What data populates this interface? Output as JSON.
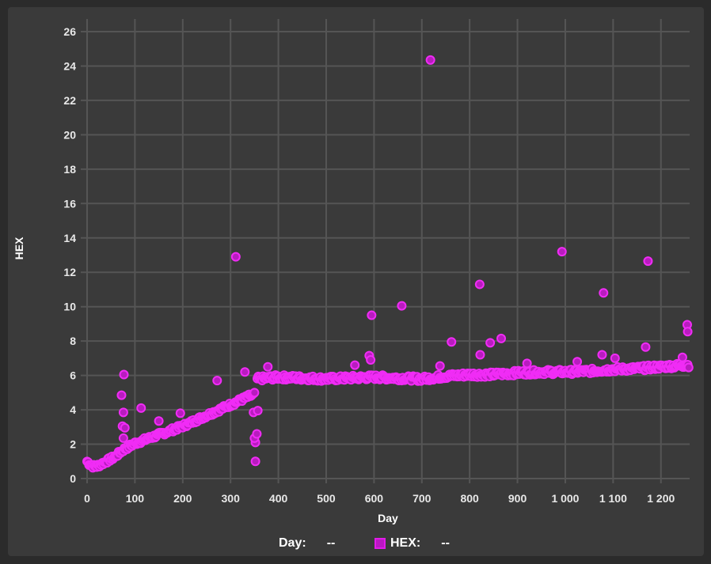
{
  "chart_data": {
    "type": "scatter",
    "xlabel": "Day",
    "ylabel": "HEX",
    "xlim": [
      0,
      1260
    ],
    "ylim": [
      0,
      26
    ],
    "x_ticks": [
      0,
      100,
      200,
      300,
      400,
      500,
      600,
      700,
      800,
      900,
      1000,
      1100,
      1200
    ],
    "x_tick_labels": [
      "0",
      "100",
      "200",
      "300",
      "400",
      "500",
      "600",
      "700",
      "800",
      "900",
      "1 000",
      "1 100",
      "1 200"
    ],
    "y_ticks": [
      0,
      2,
      4,
      6,
      8,
      10,
      12,
      14,
      16,
      18,
      20,
      22,
      24,
      26
    ],
    "grid": true,
    "marker_fill": "#b81cbf",
    "marker_stroke": "#f02cf5",
    "series": [
      {
        "values_trend": [
          [
            0,
            1.0
          ],
          [
            5,
            0.85
          ],
          [
            10,
            0.75
          ],
          [
            15,
            0.7
          ],
          [
            20,
            0.72
          ],
          [
            30,
            0.85
          ],
          [
            40,
            1.0
          ],
          [
            50,
            1.15
          ],
          [
            60,
            1.3
          ],
          [
            70,
            1.55
          ],
          [
            80,
            1.75
          ],
          [
            90,
            1.9
          ],
          [
            100,
            2.05
          ],
          [
            120,
            2.25
          ],
          [
            140,
            2.45
          ],
          [
            160,
            2.65
          ],
          [
            180,
            2.85
          ],
          [
            200,
            3.05
          ],
          [
            220,
            3.3
          ],
          [
            240,
            3.55
          ],
          [
            260,
            3.8
          ],
          [
            280,
            4.05
          ],
          [
            300,
            4.3
          ],
          [
            320,
            4.55
          ],
          [
            340,
            4.8
          ],
          [
            350,
            4.9
          ],
          [
            355,
            5.8
          ],
          [
            380,
            5.85
          ],
          [
            400,
            5.9
          ],
          [
            450,
            5.85
          ],
          [
            500,
            5.8
          ],
          [
            550,
            5.85
          ],
          [
            600,
            5.9
          ],
          [
            650,
            5.85
          ],
          [
            700,
            5.8
          ],
          [
            750,
            5.95
          ],
          [
            800,
            6.05
          ],
          [
            850,
            6.05
          ],
          [
            900,
            6.15
          ],
          [
            950,
            6.2
          ],
          [
            1000,
            6.2
          ],
          [
            1050,
            6.25
          ],
          [
            1100,
            6.35
          ],
          [
            1150,
            6.4
          ],
          [
            1200,
            6.5
          ],
          [
            1250,
            6.6
          ]
        ],
        "outliers": [
          [
            72,
            4.85
          ],
          [
            74,
            3.05
          ],
          [
            76,
            3.85
          ],
          [
            77,
            6.05
          ],
          [
            79,
            2.95
          ],
          [
            76,
            2.35
          ],
          [
            113,
            4.1
          ],
          [
            150,
            3.35
          ],
          [
            195,
            3.8
          ],
          [
            272,
            5.7
          ],
          [
            311,
            12.9
          ],
          [
            330,
            6.2
          ],
          [
            348,
            3.85
          ],
          [
            352,
            2.1
          ],
          [
            350,
            2.35
          ],
          [
            355,
            2.6
          ],
          [
            352,
            1.0
          ],
          [
            357,
            3.95
          ],
          [
            378,
            6.5
          ],
          [
            560,
            6.6
          ],
          [
            590,
            7.15
          ],
          [
            593,
            6.9
          ],
          [
            595,
            9.5
          ],
          [
            658,
            10.05
          ],
          [
            718,
            24.35
          ],
          [
            738,
            6.55
          ],
          [
            762,
            7.95
          ],
          [
            822,
            7.2
          ],
          [
            821,
            11.3
          ],
          [
            843,
            7.9
          ],
          [
            866,
            8.15
          ],
          [
            920,
            6.7
          ],
          [
            993,
            13.2
          ],
          [
            1025,
            6.8
          ],
          [
            1077,
            7.2
          ],
          [
            1080,
            10.8
          ],
          [
            1104,
            7.0
          ],
          [
            1168,
            7.65
          ],
          [
            1173,
            12.65
          ],
          [
            1245,
            7.05
          ],
          [
            1255,
            8.95
          ],
          [
            1256,
            8.55
          ]
        ]
      }
    ]
  },
  "legend": {
    "day_label": "Day:",
    "day_value": "--",
    "hex_label": "HEX:",
    "hex_value": "--"
  }
}
